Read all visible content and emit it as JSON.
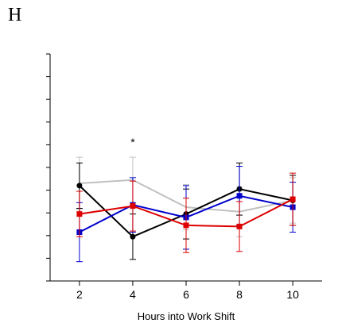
{
  "panel_label": "H",
  "chart_data": {
    "type": "line",
    "title": "",
    "xlabel": "Hours into Work Shift",
    "ylabel": "",
    "x": [
      2,
      4,
      6,
      8,
      10
    ],
    "x_tick_labels": [
      "2",
      "4",
      "6",
      "8",
      "10"
    ],
    "xlim": [
      0.9,
      11.1
    ],
    "ylim": [
      0,
      10
    ],
    "y_ticks": [
      0,
      1,
      2,
      3,
      4,
      5,
      6,
      7,
      8,
      9,
      10
    ],
    "y_tick_labels": "none",
    "grid": false,
    "legend": "none",
    "series": [
      {
        "color": "#c0c0c0",
        "marker": "none",
        "values": [
          4.3,
          4.45,
          3.25,
          3.05,
          3.55
        ],
        "err": [
          1.15,
          1.0,
          1.0,
          1.1,
          1.0
        ]
      },
      {
        "color": "#000000",
        "marker": "circle",
        "values": [
          4.2,
          1.95,
          2.95,
          4.05,
          3.55
        ],
        "err": [
          1.0,
          1.0,
          1.1,
          1.15,
          1.1
        ]
      },
      {
        "color": "#0000cc",
        "marker": "square",
        "values": [
          2.15,
          3.35,
          2.8,
          3.75,
          3.25
        ],
        "err": [
          1.3,
          1.2,
          1.4,
          1.3,
          1.1
        ]
      },
      {
        "color": "#dd0000",
        "marker": "square",
        "values": [
          2.95,
          3.3,
          2.45,
          2.4,
          3.6
        ],
        "err": [
          1.0,
          1.1,
          1.2,
          1.1,
          1.15
        ]
      }
    ],
    "annotations": [
      {
        "text": "*",
        "x": 4,
        "y": 5.95
      }
    ]
  }
}
